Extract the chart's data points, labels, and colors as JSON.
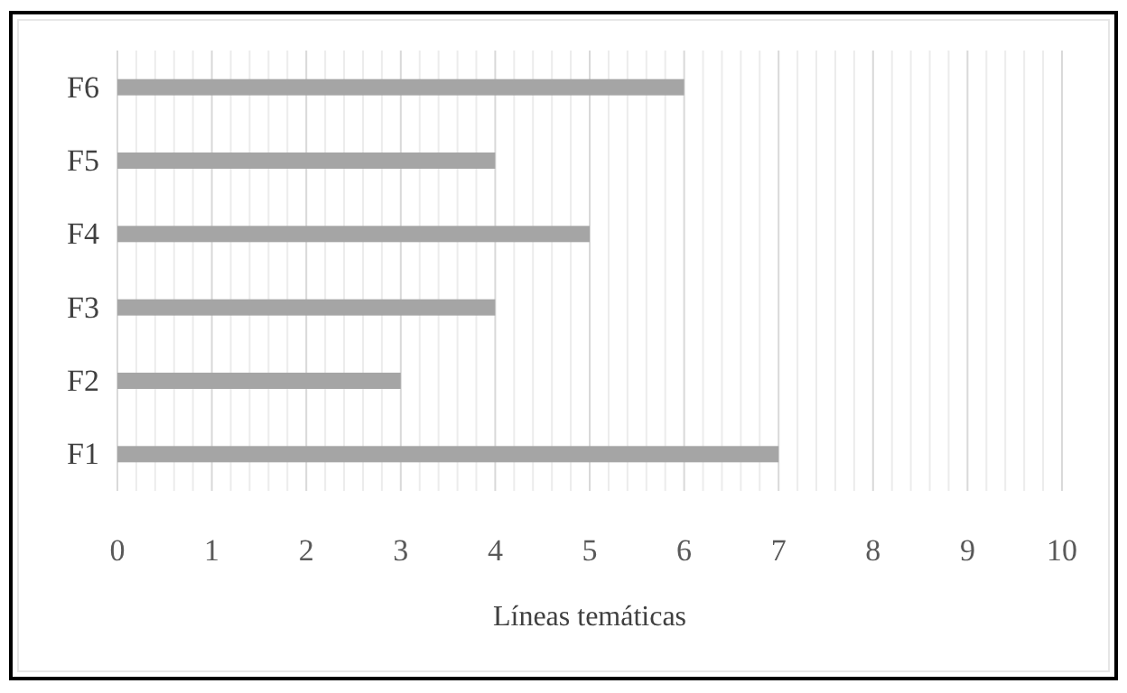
{
  "chart_data": {
    "type": "bar",
    "orientation": "horizontal",
    "xlabel": "Líneas temáticas",
    "categories": [
      "F6",
      "F5",
      "F4",
      "F3",
      "F2",
      "F1"
    ],
    "values": [
      6,
      4,
      5,
      4,
      3,
      7
    ],
    "color": "#a5a5a5",
    "xlim": [
      0,
      10
    ],
    "xticks": [
      0,
      {
        "value": 0.2,
        "label": null
      },
      {
        "value": 0.4,
        "label": null
      },
      {
        "value": 0.6,
        "label": null
      },
      {
        "value": 0.8,
        "label": null
      },
      1,
      {
        "value": 1.2,
        "label": null
      },
      {
        "value": 1.4,
        "label": null
      },
      {
        "value": 1.6,
        "label": null
      },
      {
        "value": 1.8,
        "label": null
      },
      2,
      {
        "value": 2.2,
        "label": null
      },
      {
        "value": 2.4,
        "label": null
      },
      {
        "value": 2.6,
        "label": null
      },
      {
        "value": 2.8,
        "label": null
      },
      3,
      {
        "value": 3.2,
        "label": null
      },
      {
        "value": 3.4,
        "label": null
      },
      {
        "value": 3.6,
        "label": null
      },
      {
        "value": 3.8,
        "label": null
      },
      4,
      {
        "value": 4.2,
        "label": null
      },
      {
        "value": 4.4,
        "label": null
      },
      {
        "value": 4.6,
        "label": null
      },
      {
        "value": 4.8,
        "label": null
      },
      5,
      {
        "value": 5.2,
        "label": null
      },
      {
        "value": 5.4,
        "label": null
      },
      {
        "value": 5.6,
        "label": null
      },
      {
        "value": 5.8,
        "label": null
      },
      6,
      {
        "value": 6.2,
        "label": null
      },
      {
        "value": 6.4,
        "label": null
      },
      {
        "value": 6.6,
        "label": null
      },
      {
        "value": 6.8,
        "label": null
      },
      7,
      {
        "value": 7.2,
        "label": null
      },
      {
        "value": 7.4,
        "label": null
      },
      {
        "value": 7.6,
        "label": null
      },
      {
        "value": 7.8,
        "label": null
      },
      8,
      {
        "value": 8.2,
        "label": null
      },
      {
        "value": 8.4,
        "label": null
      },
      {
        "value": 8.6,
        "label": null
      },
      {
        "value": 8.8,
        "label": null
      },
      9,
      {
        "value": 9.2,
        "label": null
      },
      {
        "value": 9.4,
        "label": null
      },
      {
        "value": 9.6,
        "label": null
      },
      {
        "value": 9.8,
        "label": null
      },
      10
    ],
    "grid": "x"
  }
}
